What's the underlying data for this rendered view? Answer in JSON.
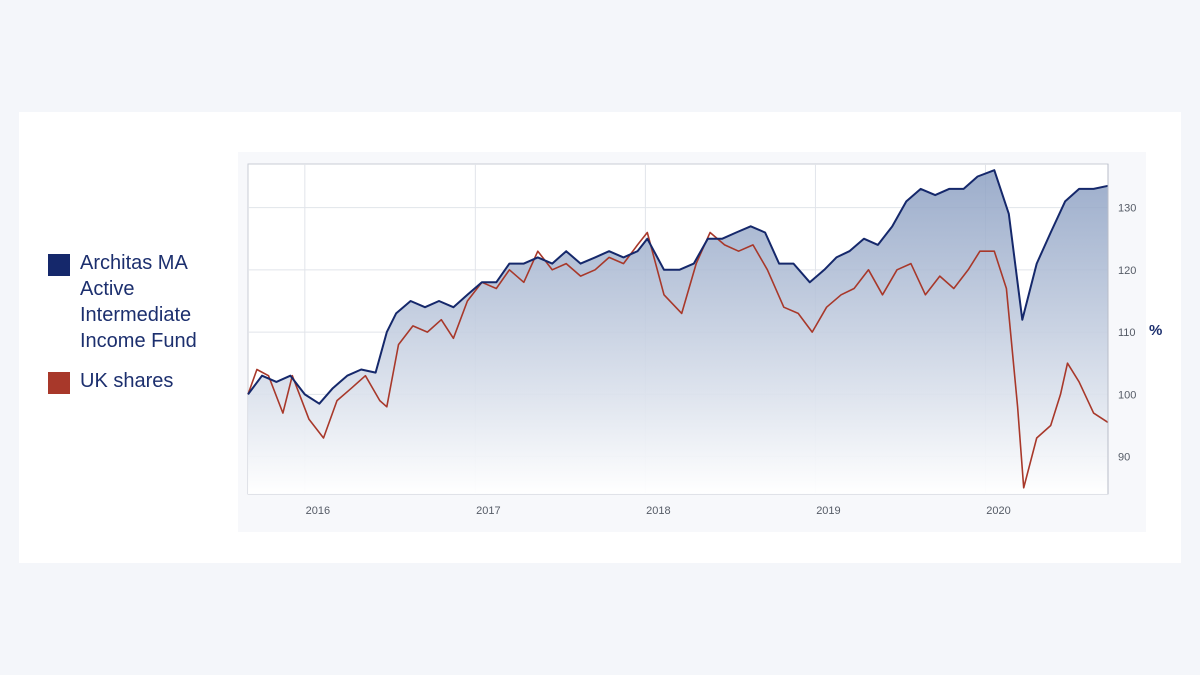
{
  "chart_data": {
    "type": "area",
    "title": "",
    "xlabel": "",
    "ylabel": "%",
    "ylim": [
      84,
      137
    ],
    "yticks": [
      90,
      100,
      110,
      120,
      130
    ],
    "xlim": [
      "2015-09-01",
      "2020-09-20"
    ],
    "xticks": [
      {
        "label": "2016",
        "date": "2016-01-01"
      },
      {
        "label": "2017",
        "date": "2017-01-01"
      },
      {
        "label": "2018",
        "date": "2018-01-01"
      },
      {
        "label": "2019",
        "date": "2019-01-01"
      },
      {
        "label": "2020",
        "date": "2020-01-01"
      }
    ],
    "grid": true,
    "legend_position": "left",
    "series": [
      {
        "name": "Architas MA Active Intermediate Income Fund",
        "color": "#15286b",
        "fill": true,
        "points": [
          [
            "2015-09-01",
            100
          ],
          [
            "2015-10-01",
            103
          ],
          [
            "2015-11-01",
            102
          ],
          [
            "2015-12-01",
            103
          ],
          [
            "2016-01-01",
            100
          ],
          [
            "2016-02-01",
            98.5
          ],
          [
            "2016-03-01",
            101
          ],
          [
            "2016-04-01",
            103
          ],
          [
            "2016-05-01",
            104
          ],
          [
            "2016-06-01",
            103.5
          ],
          [
            "2016-06-25",
            110
          ],
          [
            "2016-07-15",
            113
          ],
          [
            "2016-08-15",
            115
          ],
          [
            "2016-09-15",
            114
          ],
          [
            "2016-10-15",
            115
          ],
          [
            "2016-11-15",
            114
          ],
          [
            "2016-12-15",
            116
          ],
          [
            "2017-01-15",
            118
          ],
          [
            "2017-02-15",
            118
          ],
          [
            "2017-03-15",
            121
          ],
          [
            "2017-04-15",
            121
          ],
          [
            "2017-05-15",
            122
          ],
          [
            "2017-06-15",
            121
          ],
          [
            "2017-07-15",
            123
          ],
          [
            "2017-08-15",
            121
          ],
          [
            "2017-09-15",
            122
          ],
          [
            "2017-10-15",
            123
          ],
          [
            "2017-11-15",
            122
          ],
          [
            "2017-12-15",
            123
          ],
          [
            "2018-01-05",
            125
          ],
          [
            "2018-02-10",
            120
          ],
          [
            "2018-03-15",
            120
          ],
          [
            "2018-04-15",
            121
          ],
          [
            "2018-05-15",
            125
          ],
          [
            "2018-06-15",
            125
          ],
          [
            "2018-07-15",
            126
          ],
          [
            "2018-08-15",
            127
          ],
          [
            "2018-09-15",
            126
          ],
          [
            "2018-10-15",
            121
          ],
          [
            "2018-11-15",
            121
          ],
          [
            "2018-12-20",
            118
          ],
          [
            "2019-01-20",
            120
          ],
          [
            "2019-02-15",
            122
          ],
          [
            "2019-03-15",
            123
          ],
          [
            "2019-04-15",
            125
          ],
          [
            "2019-05-15",
            124
          ],
          [
            "2019-06-15",
            127
          ],
          [
            "2019-07-15",
            131
          ],
          [
            "2019-08-15",
            133
          ],
          [
            "2019-09-15",
            132
          ],
          [
            "2019-10-15",
            133
          ],
          [
            "2019-11-15",
            133
          ],
          [
            "2019-12-15",
            135
          ],
          [
            "2020-01-20",
            136
          ],
          [
            "2020-02-20",
            129
          ],
          [
            "2020-03-20",
            112
          ],
          [
            "2020-04-20",
            121
          ],
          [
            "2020-05-20",
            126
          ],
          [
            "2020-06-20",
            131
          ],
          [
            "2020-07-20",
            133
          ],
          [
            "2020-08-20",
            133
          ],
          [
            "2020-09-20",
            133.5
          ]
        ]
      },
      {
        "name": "UK shares",
        "color": "#a8382a",
        "fill": false,
        "points": [
          [
            "2015-09-01",
            100
          ],
          [
            "2015-09-20",
            104
          ],
          [
            "2015-10-15",
            103
          ],
          [
            "2015-11-15",
            97
          ],
          [
            "2015-12-05",
            103
          ],
          [
            "2016-01-10",
            96
          ],
          [
            "2016-02-10",
            93
          ],
          [
            "2016-03-10",
            99
          ],
          [
            "2016-04-10",
            101
          ],
          [
            "2016-05-10",
            103
          ],
          [
            "2016-06-10",
            99
          ],
          [
            "2016-06-25",
            98
          ],
          [
            "2016-07-20",
            108
          ],
          [
            "2016-08-20",
            111
          ],
          [
            "2016-09-20",
            110
          ],
          [
            "2016-10-20",
            112
          ],
          [
            "2016-11-15",
            109
          ],
          [
            "2016-12-15",
            115
          ],
          [
            "2017-01-15",
            118
          ],
          [
            "2017-02-15",
            117
          ],
          [
            "2017-03-15",
            120
          ],
          [
            "2017-04-15",
            118
          ],
          [
            "2017-05-15",
            123
          ],
          [
            "2017-06-15",
            120
          ],
          [
            "2017-07-15",
            121
          ],
          [
            "2017-08-15",
            119
          ],
          [
            "2017-09-15",
            120
          ],
          [
            "2017-10-15",
            122
          ],
          [
            "2017-11-15",
            121
          ],
          [
            "2017-12-15",
            124
          ],
          [
            "2018-01-05",
            126
          ],
          [
            "2018-02-10",
            116
          ],
          [
            "2018-03-20",
            113
          ],
          [
            "2018-04-20",
            121
          ],
          [
            "2018-05-20",
            126
          ],
          [
            "2018-06-20",
            124
          ],
          [
            "2018-07-20",
            123
          ],
          [
            "2018-08-20",
            124
          ],
          [
            "2018-09-20",
            120
          ],
          [
            "2018-10-25",
            114
          ],
          [
            "2018-11-25",
            113
          ],
          [
            "2018-12-25",
            110
          ],
          [
            "2019-01-25",
            114
          ],
          [
            "2019-02-25",
            116
          ],
          [
            "2019-03-25",
            117
          ],
          [
            "2019-04-25",
            120
          ],
          [
            "2019-05-25",
            116
          ],
          [
            "2019-06-25",
            120
          ],
          [
            "2019-07-25",
            121
          ],
          [
            "2019-08-25",
            116
          ],
          [
            "2019-09-25",
            119
          ],
          [
            "2019-10-25",
            117
          ],
          [
            "2019-11-25",
            120
          ],
          [
            "2019-12-20",
            123
          ],
          [
            "2020-01-20",
            123
          ],
          [
            "2020-02-15",
            117
          ],
          [
            "2020-03-10",
            98
          ],
          [
            "2020-03-23",
            85
          ],
          [
            "2020-04-20",
            93
          ],
          [
            "2020-05-20",
            95
          ],
          [
            "2020-06-10",
            100
          ],
          [
            "2020-06-25",
            105
          ],
          [
            "2020-07-20",
            102
          ],
          [
            "2020-08-20",
            97
          ],
          [
            "2020-09-20",
            95.5
          ]
        ]
      }
    ]
  }
}
